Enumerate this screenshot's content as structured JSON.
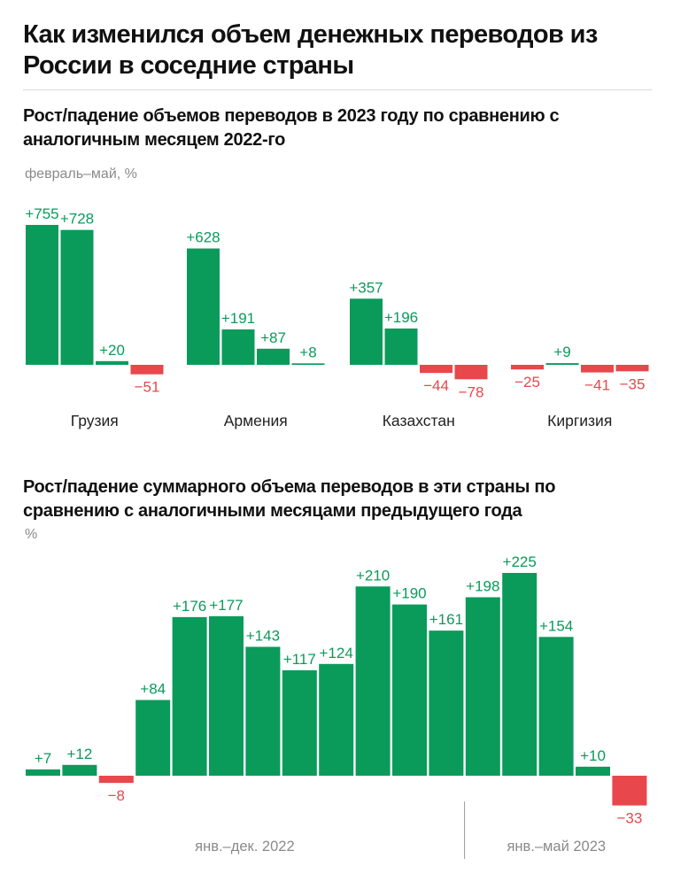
{
  "title": "Как изменился объем денежных переводов из России в соседние страны",
  "colors": {
    "positive": "#0a9b5b",
    "negative": "#e8474b",
    "muted": "#8a8a8a",
    "divider": "#d9d9d9"
  },
  "chart_data": [
    {
      "type": "bar",
      "title": "Рост/падение объемов переводов в 2023 году по сравнению с аналогичным месяцем 2022-го",
      "unit": "февраль–май, %",
      "categories": [
        "Грузия",
        "Армения",
        "Казахстан",
        "Киргизия"
      ],
      "groups": [
        {
          "name": "Грузия",
          "values": [
            755,
            728,
            20,
            -51
          ],
          "labels": [
            "+755",
            "+728",
            "+20",
            "−51"
          ]
        },
        {
          "name": "Армения",
          "values": [
            628,
            191,
            87,
            8
          ],
          "labels": [
            "+628",
            "+191",
            "+87",
            "+8"
          ]
        },
        {
          "name": "Казахстан",
          "values": [
            357,
            196,
            -44,
            -78
          ],
          "labels": [
            "+357",
            "+196",
            "−44",
            "−78"
          ]
        },
        {
          "name": "Киргизия",
          "values": [
            -25,
            9,
            -41,
            -35
          ],
          "labels": [
            "−25",
            "+9",
            "−41",
            "−35"
          ]
        }
      ]
    },
    {
      "type": "bar",
      "title": "Рост/падение суммарного объема переводов в эти страны по сравнению с аналогичными месяцами предыдущего года",
      "unit": "%",
      "values": [
        7,
        12,
        -8,
        84,
        176,
        177,
        143,
        117,
        124,
        210,
        190,
        161,
        198,
        225,
        154,
        10,
        -33
      ],
      "labels": [
        "+7",
        "+12",
        "−8",
        "+84",
        "+176",
        "+177",
        "+143",
        "+117",
        "+124",
        "+210",
        "+190",
        "+161",
        "+198",
        "+225",
        "+154",
        "+10",
        "−33"
      ],
      "periods": [
        "янв.–дек. 2022",
        "янв.–май 2023"
      ]
    }
  ]
}
